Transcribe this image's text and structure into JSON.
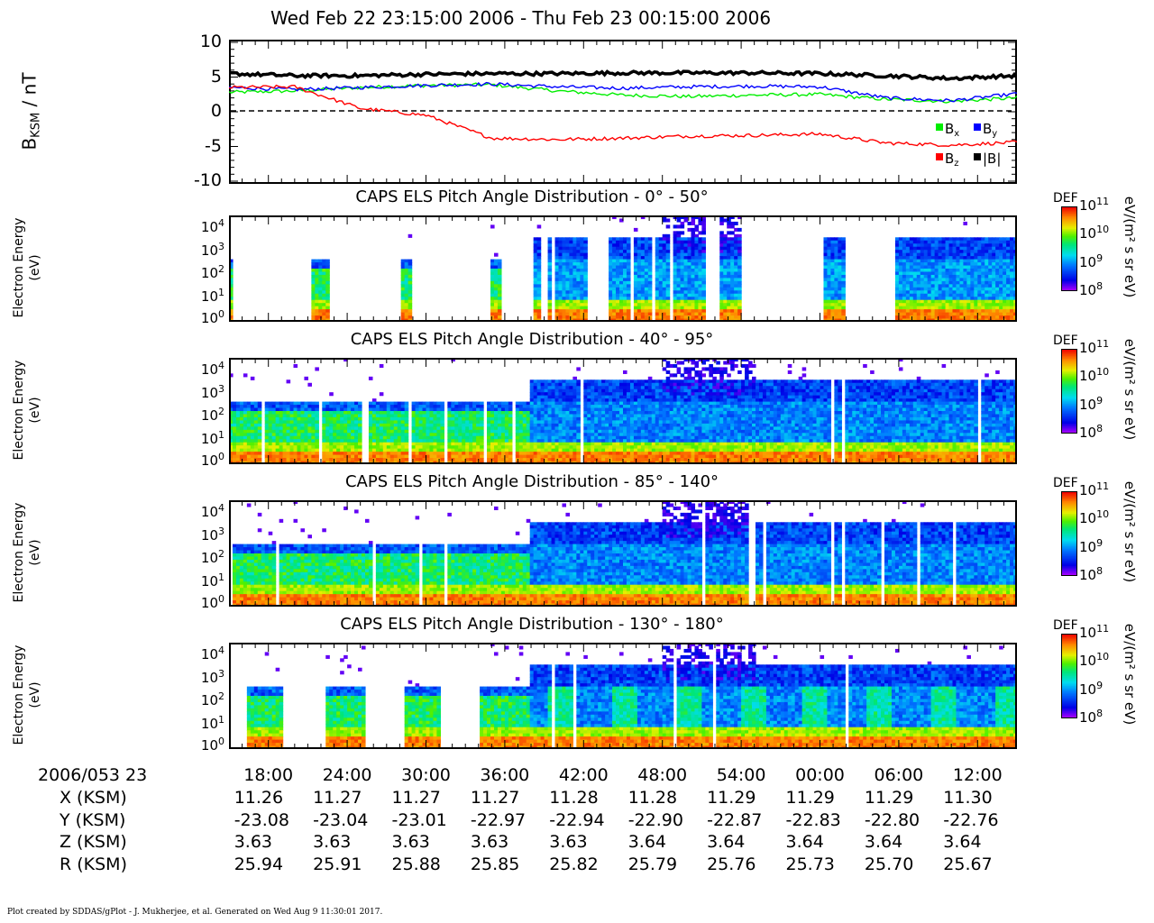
{
  "header": {
    "title": "Wed Feb 22 23:15:00 2006 - Thu Feb 23 00:15:00 2006"
  },
  "mag_panel": {
    "ylabel_main": "B",
    "ylabel_sub": "KSM",
    "ylabel_unit": " / nT",
    "yticks": [
      "10",
      "5",
      "0",
      "-5",
      "-10"
    ],
    "legend": [
      {
        "label": "B",
        "sub": "x",
        "color": "#00ee00"
      },
      {
        "label": "B",
        "sub": "y",
        "color": "#0000ff"
      },
      {
        "label": "B",
        "sub": "z",
        "color": "#ff0000"
      },
      {
        "label": "|B|",
        "sub": "",
        "color": "#000000"
      }
    ]
  },
  "spec_panels": [
    {
      "title": "CAPS ELS Pitch Angle Distribution - 0° - 50°",
      "ylabel1": "Electron Energy",
      "ylabel2": "(eV)"
    },
    {
      "title": "CAPS ELS Pitch Angle Distribution - 40° - 95°",
      "ylabel1": "Electron Energy",
      "ylabel2": "(eV)"
    },
    {
      "title": "CAPS ELS Pitch Angle Distribution - 85° - 140°",
      "ylabel1": "Electron Energy",
      "ylabel2": "(eV)"
    },
    {
      "title": "CAPS ELS Pitch Angle Distribution - 130° - 180°",
      "ylabel1": "Electron Energy",
      "ylabel2": "(eV)"
    }
  ],
  "energy_ticks": [
    {
      "base": "10",
      "exp": "4"
    },
    {
      "base": "10",
      "exp": "3"
    },
    {
      "base": "10",
      "exp": "2"
    },
    {
      "base": "10",
      "exp": "1"
    },
    {
      "base": "10",
      "exp": "0"
    }
  ],
  "colorbar": {
    "label": "DEF",
    "units": "eV/(m² s sr eV)",
    "ticks": [
      {
        "base": "10",
        "exp": "11"
      },
      {
        "base": "10",
        "exp": "10"
      },
      {
        "base": "10",
        "exp": "9"
      },
      {
        "base": "10",
        "exp": "8"
      }
    ]
  },
  "ephemeris": {
    "start_label": "2006/053 23",
    "times": [
      "18:00",
      "24:00",
      "30:00",
      "36:00",
      "42:00",
      "48:00",
      "54:00",
      "00:00",
      "06:00",
      "12:00"
    ],
    "rows": [
      {
        "label": "X (KSM)",
        "values": [
          "11.26",
          "11.27",
          "11.27",
          "11.27",
          "11.28",
          "11.28",
          "11.29",
          "11.29",
          "11.29",
          "11.30"
        ]
      },
      {
        "label": "Y (KSM)",
        "values": [
          "-23.08",
          "-23.04",
          "-23.01",
          "-22.97",
          "-22.94",
          "-22.90",
          "-22.87",
          "-22.83",
          "-22.80",
          "-22.76"
        ]
      },
      {
        "label": "Z (KSM)",
        "values": [
          "3.63",
          "3.63",
          "3.63",
          "3.63",
          "3.63",
          "3.64",
          "3.64",
          "3.64",
          "3.64",
          "3.64"
        ]
      },
      {
        "label": "R (KSM)",
        "values": [
          "25.94",
          "25.91",
          "25.88",
          "25.85",
          "25.82",
          "25.79",
          "25.76",
          "25.73",
          "25.70",
          "25.67"
        ]
      }
    ]
  },
  "footer": {
    "text": "Plot created by SDDAS/gPlot - J. Mukherjee, et al.  Generated on Wed Aug 9 11:30:01 2017."
  },
  "chart_data": [
    {
      "type": "line",
      "title": "",
      "xlabel": "",
      "ylabel": "B_KSM / nT",
      "ylim": [
        -10,
        10
      ],
      "x_minutes_after_2006-02-22T23:15": [
        0,
        5,
        10,
        15,
        20,
        25,
        30,
        35,
        40,
        45,
        50,
        55,
        60
      ],
      "series": [
        {
          "name": "Bx",
          "color": "#00ee00",
          "values": [
            2.8,
            3.0,
            3.5,
            3.8,
            3.9,
            3.0,
            2.4,
            2.2,
            2.4,
            2.5,
            1.8,
            1.5,
            2.0
          ]
        },
        {
          "name": "By",
          "color": "#0000ff",
          "values": [
            3.5,
            3.2,
            3.5,
            3.8,
            4.0,
            3.6,
            3.4,
            3.6,
            3.7,
            3.6,
            2.0,
            1.6,
            2.6
          ]
        },
        {
          "name": "Bz",
          "color": "#ff0000",
          "values": [
            3.5,
            3.6,
            0.5,
            -0.5,
            -3.8,
            -4.0,
            -3.8,
            -3.5,
            -3.4,
            -3.2,
            -4.5,
            -4.8,
            -4.4
          ]
        },
        {
          "name": "|B|",
          "color": "#000000",
          "values": [
            5.5,
            5.2,
            5.2,
            5.4,
            5.5,
            5.5,
            5.6,
            5.6,
            5.6,
            5.5,
            5.2,
            4.8,
            5.2
          ]
        }
      ]
    },
    {
      "type": "heatmap",
      "title": "CAPS ELS Pitch Angle Distribution - 0° - 50°",
      "ylabel": "Electron Energy (eV)",
      "y_scale": "log",
      "ylim": [
        1,
        20000
      ],
      "colorbar": {
        "label": "DEF",
        "units": "eV/(m² s sr eV)",
        "range": [
          100000000.0,
          100000000000.0
        ]
      },
      "data_intervals_min": [
        [
          0,
          0.3
        ],
        [
          6.2,
          7.6
        ],
        [
          13.1,
          14.0
        ],
        [
          20.0,
          20.6
        ],
        [
          23.3,
          23.8
        ],
        [
          24.4,
          27.3
        ],
        [
          29.0,
          33.5
        ],
        [
          33.7,
          36.2
        ],
        [
          37.3,
          39.0
        ],
        [
          45.3,
          47.0
        ],
        [
          50.8,
          60
        ]
      ],
      "low_energy_band_ev": [
        1,
        30
      ],
      "peak_log10_def": 10.5
    },
    {
      "type": "heatmap",
      "title": "CAPS ELS Pitch Angle Distribution - 40° - 95°",
      "ylabel": "Electron Energy (eV)",
      "y_scale": "log",
      "ylim": [
        1,
        20000
      ],
      "colorbar": {
        "label": "DEF",
        "units": "eV/(m² s sr eV)",
        "range": [
          100000000.0,
          100000000000.0
        ]
      },
      "data_intervals_min": [
        [
          0,
          10.0
        ],
        [
          10.7,
          60
        ]
      ],
      "low_energy_band_ev": [
        1,
        30
      ],
      "peak_log10_def": 10.6
    },
    {
      "type": "heatmap",
      "title": "CAPS ELS Pitch Angle Distribution - 85° - 140°",
      "ylabel": "Electron Energy (eV)",
      "y_scale": "log",
      "ylim": [
        1,
        20000
      ],
      "colorbar": {
        "label": "DEF",
        "units": "eV/(m² s sr eV)",
        "range": [
          100000000.0,
          100000000000.0
        ]
      },
      "data_intervals_min": [
        [
          0,
          60
        ]
      ],
      "low_energy_band_ev": [
        1,
        30
      ],
      "peak_log10_def": 10.7
    },
    {
      "type": "heatmap",
      "title": "CAPS ELS Pitch Angle Distribution - 130° - 180°",
      "ylabel": "Electron Energy (eV)",
      "y_scale": "log",
      "ylim": [
        1,
        20000
      ],
      "colorbar": {
        "label": "DEF",
        "units": "eV/(m² s sr eV)",
        "range": [
          100000000.0,
          100000000000.0
        ]
      },
      "data_intervals_min": [
        [
          1.3,
          4.0
        ],
        [
          7.5,
          10.3
        ],
        [
          13.3,
          16.1
        ],
        [
          19.0,
          60
        ]
      ],
      "low_energy_band_ev": [
        1,
        30
      ],
      "peak_log10_def": 10.6
    }
  ]
}
